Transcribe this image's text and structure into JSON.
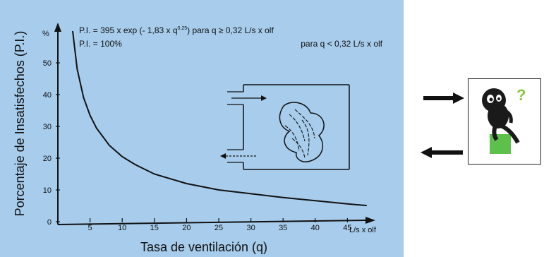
{
  "chart_data": {
    "type": "line",
    "title": "",
    "formula_line1_left": "P.I. = 395 x exp (- 1,83 x q",
    "formula_line1_exp": "0,25",
    "formula_line1_right": ")   para q ≥ 0,32 L/s x olf",
    "formula_line2_left": "P.I. = 100%",
    "formula_line2_right": "para q < 0,32 L/s x olf",
    "xlabel": "Tasa de ventilación (q)",
    "ylabel": "Porcentaje de Insatisfechos (P.I.)",
    "x_unit": "L/s x olf",
    "y_unit": "%",
    "xlim": [
      0,
      50
    ],
    "ylim": [
      0,
      60
    ],
    "x_ticks": [
      0,
      5,
      10,
      15,
      20,
      25,
      30,
      35,
      40,
      45
    ],
    "y_ticks": [
      0,
      10,
      20,
      30,
      40,
      50
    ],
    "series": [
      {
        "x": [
          2.3,
          3,
          4,
          5,
          6,
          8,
          10,
          12,
          15,
          20,
          25,
          30,
          35,
          40,
          45,
          48
        ],
        "values": [
          60,
          48,
          39,
          33.5,
          29.5,
          24,
          20.5,
          18,
          15,
          12,
          10,
          8.8,
          7.6,
          6.6,
          5.6,
          5.1
        ]
      }
    ],
    "grid": false,
    "legend": "none"
  },
  "colors": {
    "panel_background": "#a7ccec",
    "line": "#111111",
    "icon_body": "#1a1a1a",
    "icon_seat": "#5cc04a",
    "icon_question": "#8cc63f"
  },
  "icons": {
    "inset": "ventilated-room-illustration",
    "flow": "bidirectional-arrows",
    "character": "thinking-character-icon"
  }
}
